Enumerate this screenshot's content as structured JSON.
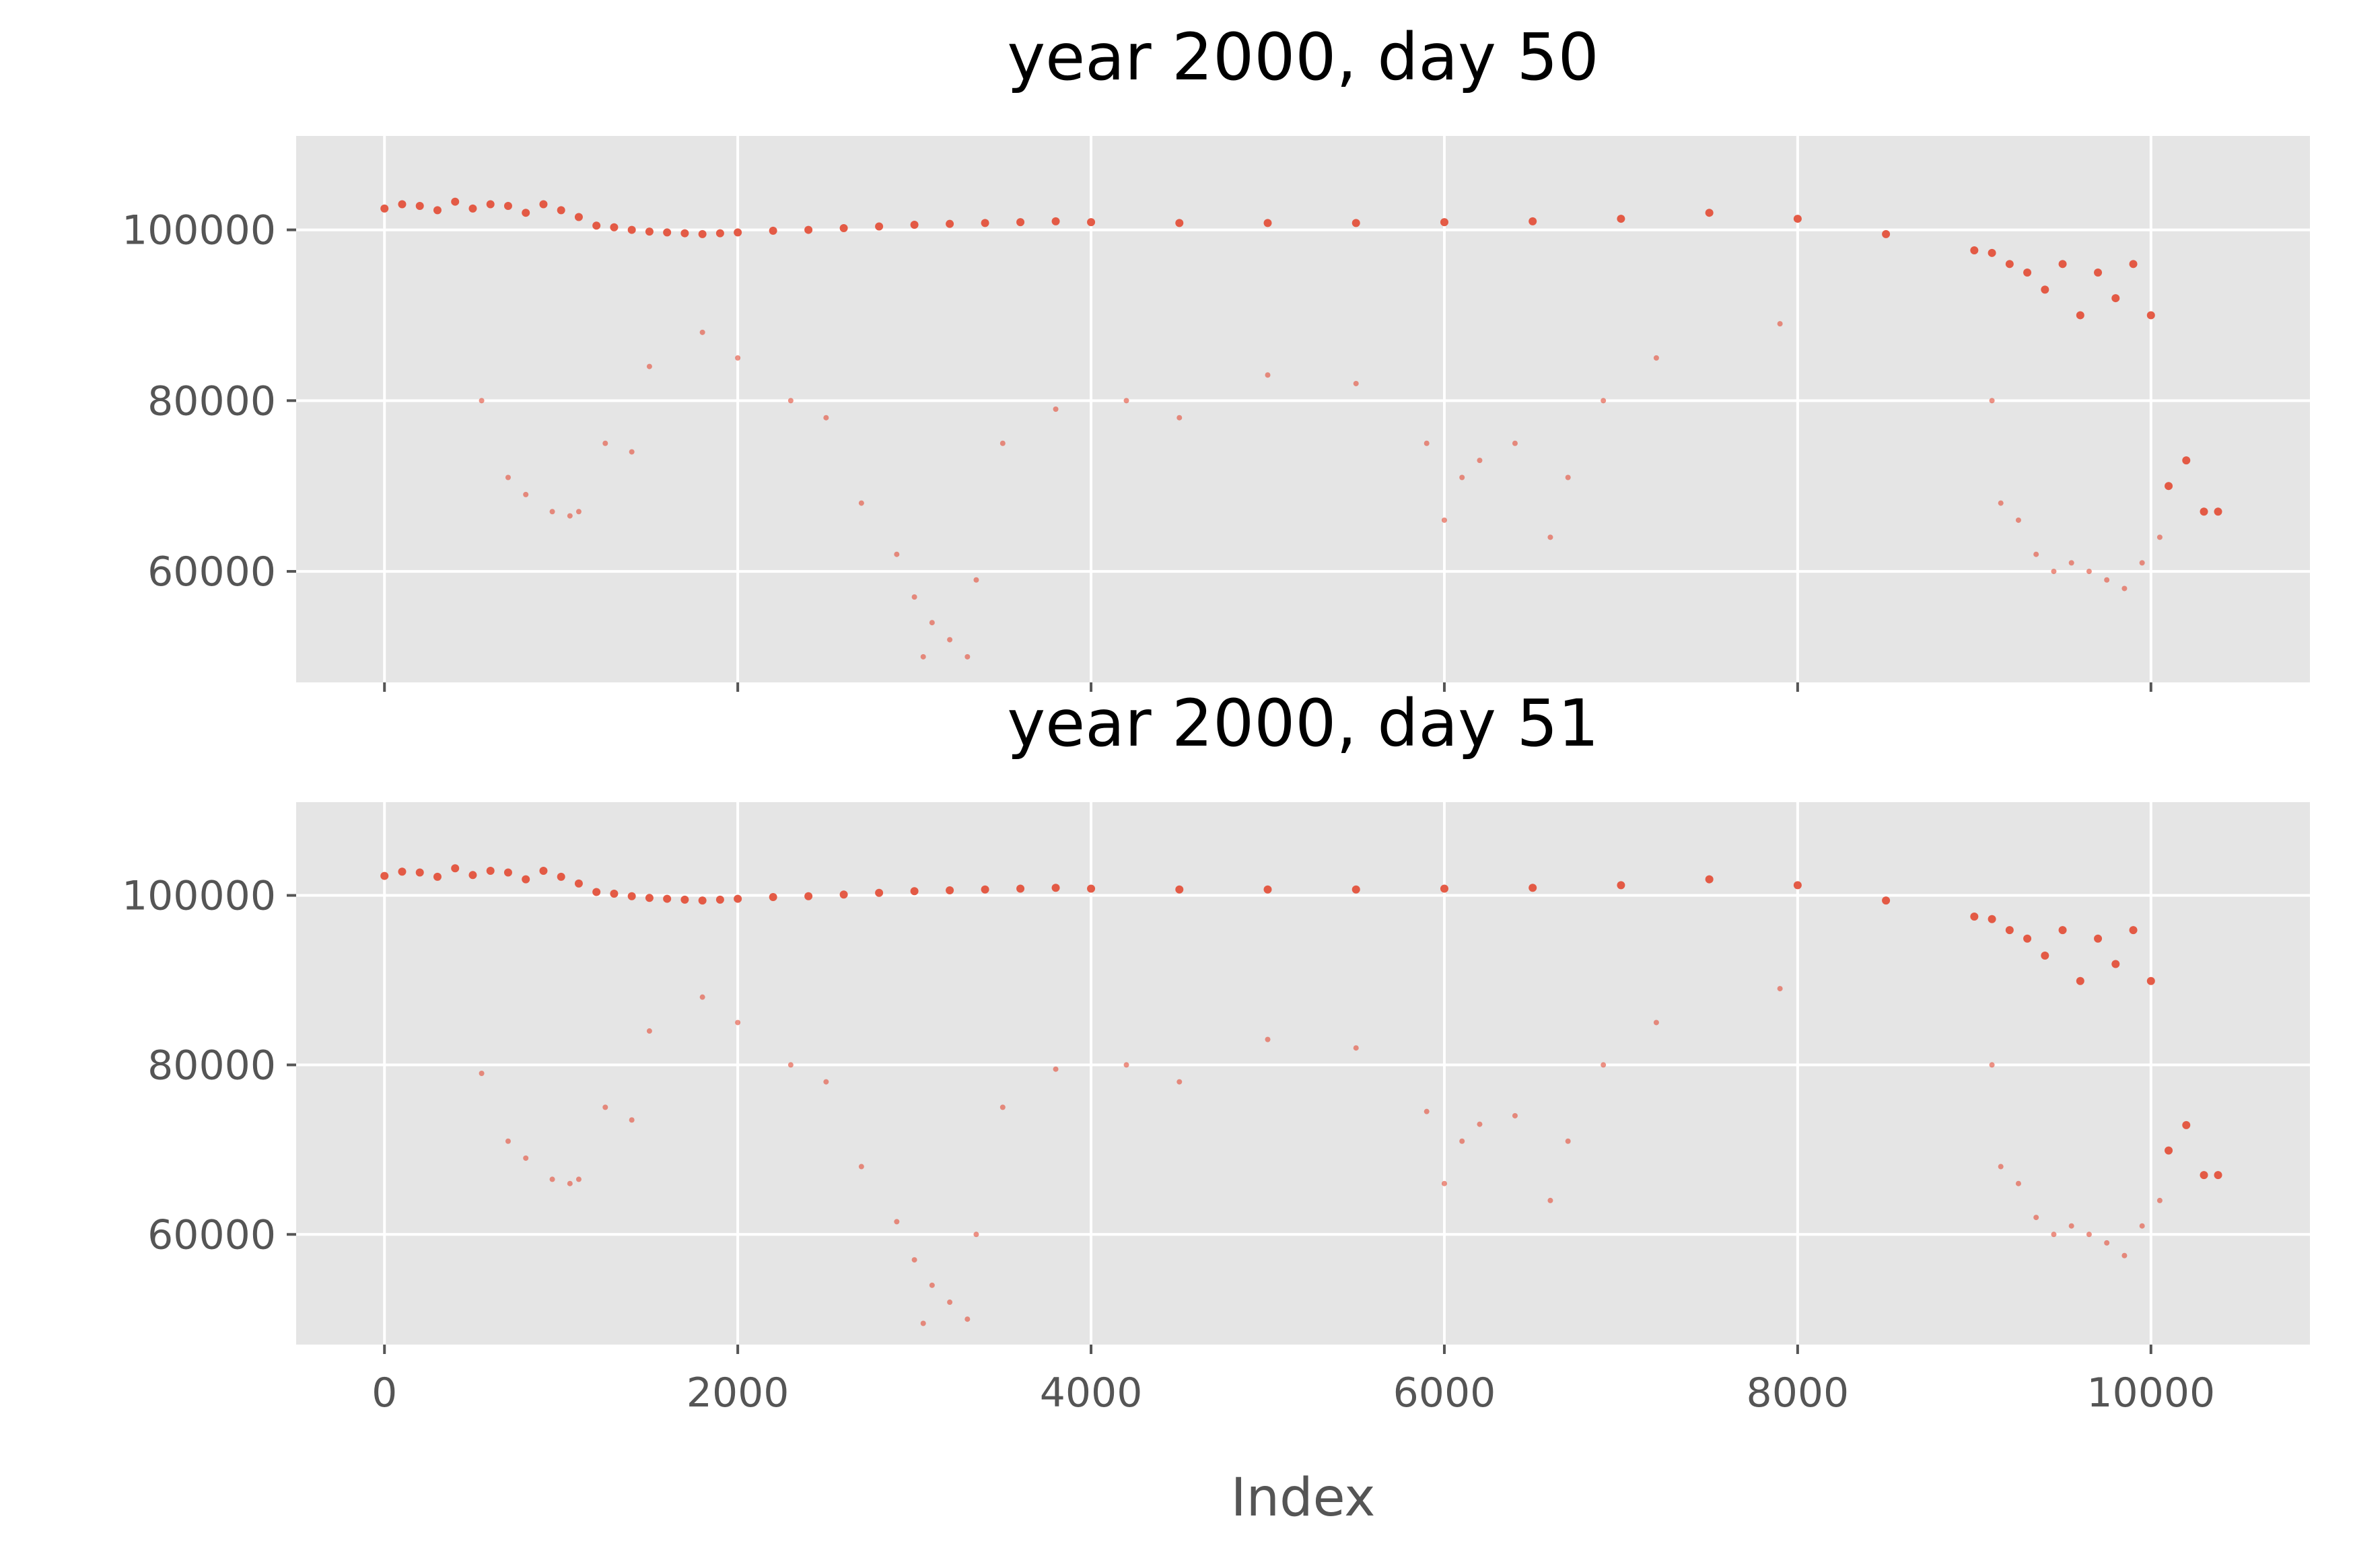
{
  "chart_data": [
    {
      "type": "scatter",
      "title": "year 2000, day 50",
      "xlabel": "",
      "ylabel": "",
      "xlim": [
        -500,
        10900
      ],
      "ylim": [
        47000,
        111000
      ],
      "xticks": [
        0,
        2000,
        4000,
        6000,
        8000,
        10000
      ],
      "yticks": [
        60000,
        80000,
        100000
      ],
      "ytick_labels": [
        "60000",
        "80000",
        "100000"
      ],
      "xtick_labels_visible": false,
      "grid": true,
      "color": "#e24a33",
      "series": [
        {
          "x": [
            0,
            100,
            200,
            300,
            400,
            500,
            600,
            700,
            800,
            900,
            1000,
            1100,
            1200,
            1300,
            1400,
            1500,
            1600,
            1700,
            1800,
            1900,
            2000,
            2200,
            2400,
            2600,
            2800,
            3000,
            3200,
            3400,
            3600,
            3800,
            4000,
            4500,
            5000,
            5500,
            6000,
            6500,
            7000,
            7500,
            8000,
            8500,
            9000,
            9100,
            9200,
            9300,
            9400,
            9500,
            9600,
            9700,
            9800,
            9900,
            10000,
            10100,
            10200,
            10300,
            10380
          ],
          "y": [
            102500,
            103000,
            102800,
            102300,
            103300,
            102500,
            103000,
            102800,
            102000,
            103000,
            102300,
            101500,
            100500,
            100300,
            100000,
            99800,
            99700,
            99600,
            99500,
            99600,
            99700,
            99900,
            100000,
            100200,
            100400,
            100600,
            100700,
            100800,
            100900,
            101000,
            100900,
            100800,
            100800,
            100800,
            100900,
            101000,
            101300,
            102000,
            101300,
            99500,
            97600,
            97300,
            96000,
            95000,
            93000,
            96000,
            90000,
            95000,
            92000,
            96000,
            90000,
            70000,
            73000,
            67000,
            67000
          ]
        },
        {
          "x": [
            550,
            700,
            800,
            950,
            1050,
            1100,
            1250,
            1400,
            1500,
            1800,
            2000,
            2300,
            2500,
            2700,
            2900,
            3000,
            3050,
            3100,
            3200,
            3300,
            3350,
            3500,
            3800,
            4200,
            4500,
            5000,
            5500,
            5900,
            6000,
            6100,
            6200,
            6400,
            6600,
            6700,
            6900,
            7200,
            7900,
            9100,
            9150,
            9250,
            9350,
            9450,
            9550,
            9650,
            9750,
            9850,
            9950,
            10050
          ],
          "y": [
            80000,
            71000,
            69000,
            67000,
            66500,
            67000,
            75000,
            74000,
            84000,
            88000,
            85000,
            80000,
            78000,
            68000,
            62000,
            57000,
            50000,
            54000,
            52000,
            50000,
            59000,
            75000,
            79000,
            80000,
            78000,
            83000,
            82000,
            75000,
            66000,
            71000,
            73000,
            75000,
            64000,
            71000,
            80000,
            85000,
            89000,
            80000,
            68000,
            66000,
            62000,
            60000,
            61000,
            60000,
            59000,
            58000,
            61000,
            64000
          ]
        }
      ]
    },
    {
      "type": "scatter",
      "title": "year 2000, day 51",
      "xlabel": "Index",
      "ylabel": "",
      "xlim": [
        -500,
        10900
      ],
      "ylim": [
        47000,
        111000
      ],
      "xticks": [
        0,
        2000,
        4000,
        6000,
        8000,
        10000
      ],
      "xtick_labels": [
        "0",
        "2000",
        "4000",
        "6000",
        "8000",
        "10000"
      ],
      "yticks": [
        60000,
        80000,
        100000
      ],
      "ytick_labels": [
        "60000",
        "80000",
        "100000"
      ],
      "grid": true,
      "color": "#e24a33",
      "series": [
        {
          "x": [
            0,
            100,
            200,
            300,
            400,
            500,
            600,
            700,
            800,
            900,
            1000,
            1100,
            1200,
            1300,
            1400,
            1500,
            1600,
            1700,
            1800,
            1900,
            2000,
            2200,
            2400,
            2600,
            2800,
            3000,
            3200,
            3400,
            3600,
            3800,
            4000,
            4500,
            5000,
            5500,
            6000,
            6500,
            7000,
            7500,
            8000,
            8500,
            9000,
            9100,
            9200,
            9300,
            9400,
            9500,
            9600,
            9700,
            9800,
            9900,
            10000,
            10100,
            10200,
            10300,
            10380
          ],
          "y": [
            102300,
            102800,
            102700,
            102200,
            103200,
            102400,
            102900,
            102700,
            101900,
            102900,
            102200,
            101400,
            100400,
            100200,
            99900,
            99700,
            99600,
            99500,
            99400,
            99500,
            99600,
            99800,
            99900,
            100100,
            100300,
            100500,
            100600,
            100700,
            100800,
            100900,
            100800,
            100700,
            100700,
            100700,
            100800,
            100900,
            101200,
            101900,
            101200,
            99400,
            97500,
            97200,
            95900,
            94900,
            92900,
            95900,
            89900,
            94900,
            91900,
            95900,
            89900,
            69900,
            72900,
            67000,
            67000
          ]
        },
        {
          "x": [
            550,
            700,
            800,
            950,
            1050,
            1100,
            1250,
            1400,
            1500,
            1800,
            2000,
            2300,
            2500,
            2700,
            2900,
            3000,
            3050,
            3100,
            3200,
            3300,
            3350,
            3500,
            3800,
            4200,
            4500,
            5000,
            5500,
            5900,
            6000,
            6100,
            6200,
            6400,
            6600,
            6700,
            6900,
            7200,
            7900,
            9100,
            9150,
            9250,
            9350,
            9450,
            9550,
            9650,
            9750,
            9850,
            9950,
            10050
          ],
          "y": [
            79000,
            71000,
            69000,
            66500,
            66000,
            66500,
            75000,
            73500,
            84000,
            88000,
            85000,
            80000,
            78000,
            68000,
            61500,
            57000,
            49500,
            54000,
            52000,
            50000,
            60000,
            75000,
            79500,
            80000,
            78000,
            83000,
            82000,
            74500,
            66000,
            71000,
            73000,
            74000,
            64000,
            71000,
            80000,
            85000,
            89000,
            80000,
            68000,
            66000,
            62000,
            60000,
            61000,
            60000,
            59000,
            57500,
            61000,
            64000
          ]
        }
      ]
    }
  ]
}
